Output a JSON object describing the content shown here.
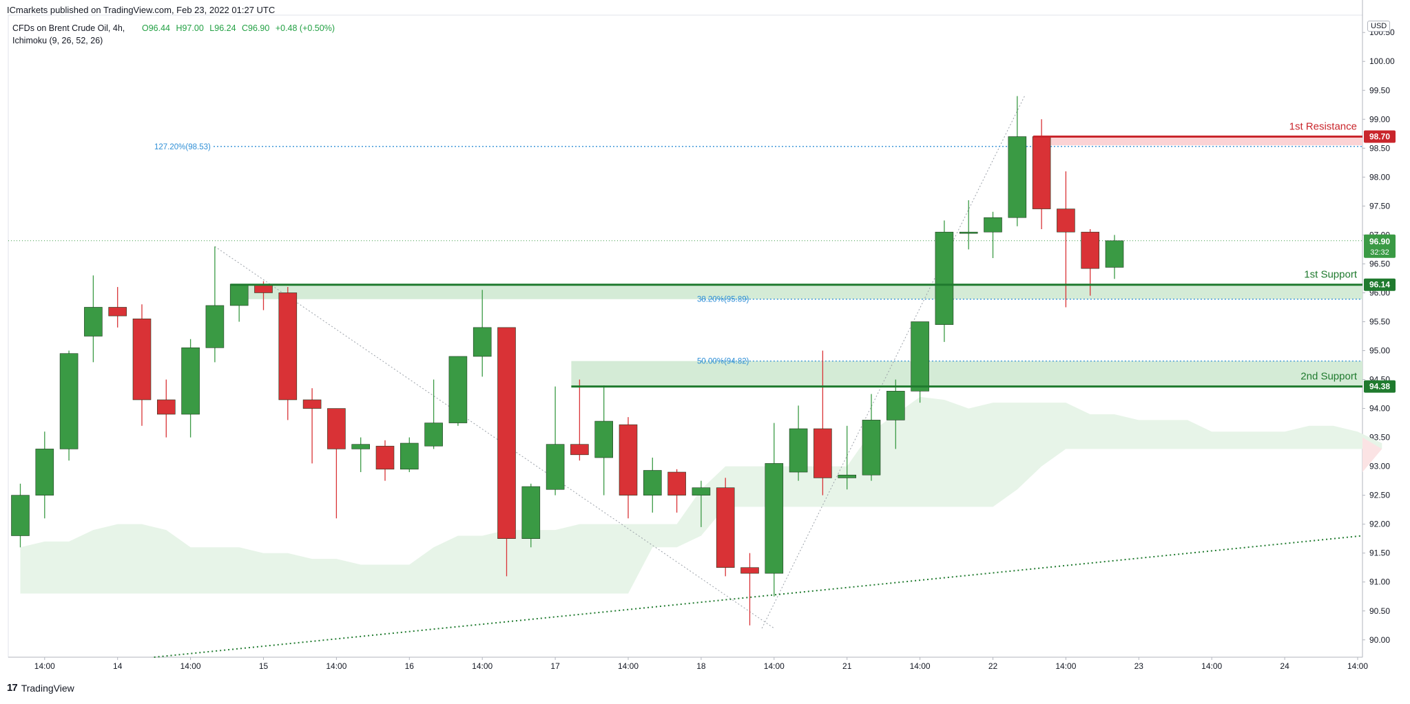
{
  "header": {
    "publisher": "ICmarkets published on TradingView.com, Feb 23, 2022 01:27 UTC",
    "symbol": "CFDs on Brent Crude Oil, 4h,",
    "indicator": "Ichimoku (9, 26, 52, 26)",
    "ohlc": {
      "open": "O96.44",
      "high": "H97.00",
      "low": "L96.24",
      "close": "C96.90",
      "change": "+0.48 (+0.50%)"
    }
  },
  "currency": "USD",
  "footer": {
    "logo_text": "TradingView"
  },
  "colors": {
    "up": "#3a9a44",
    "down": "#d93236",
    "support": "#1f7a2e",
    "resistance": "#c9252b",
    "fib": "#2f8fd6",
    "cloud": "#e7f4e8"
  },
  "chart_data": {
    "type": "candlestick",
    "timeframe": "4h",
    "ylim": [
      89.7,
      100.8
    ],
    "y_ticks": [
      "90.00",
      "90.50",
      "91.00",
      "91.50",
      "92.00",
      "92.50",
      "93.00",
      "93.50",
      "94.00",
      "94.50",
      "95.00",
      "95.50",
      "96.00",
      "96.50",
      "97.00",
      "97.50",
      "98.00",
      "98.50",
      "99.00",
      "99.50",
      "100.00",
      "100.50"
    ],
    "x_ticks": [
      {
        "i": 1,
        "label": "14:00"
      },
      {
        "i": 4,
        "label": "14"
      },
      {
        "i": 7,
        "label": "14:00"
      },
      {
        "i": 10,
        "label": "15"
      },
      {
        "i": 13,
        "label": "14:00"
      },
      {
        "i": 16,
        "label": "16"
      },
      {
        "i": 19,
        "label": "14:00"
      },
      {
        "i": 22,
        "label": "17"
      },
      {
        "i": 25,
        "label": "14:00"
      },
      {
        "i": 28,
        "label": "18"
      },
      {
        "i": 31,
        "label": "14:00"
      },
      {
        "i": 34,
        "label": "21"
      },
      {
        "i": 37,
        "label": "14:00"
      },
      {
        "i": 40,
        "label": "22"
      },
      {
        "i": 43,
        "label": "14:00"
      },
      {
        "i": 46,
        "label": "23"
      },
      {
        "i": 49,
        "label": "14:00"
      },
      {
        "i": 52,
        "label": "24"
      },
      {
        "i": 55,
        "label": "14:00"
      }
    ],
    "candles": [
      {
        "o": 91.8,
        "h": 92.7,
        "l": 91.6,
        "c": 92.5
      },
      {
        "o": 92.5,
        "h": 93.6,
        "l": 92.1,
        "c": 93.3
      },
      {
        "o": 93.3,
        "h": 95.0,
        "l": 93.1,
        "c": 94.95
      },
      {
        "o": 95.25,
        "h": 96.3,
        "l": 94.8,
        "c": 95.75
      },
      {
        "o": 95.75,
        "h": 96.1,
        "l": 95.4,
        "c": 95.6
      },
      {
        "o": 95.55,
        "h": 95.8,
        "l": 93.7,
        "c": 94.15
      },
      {
        "o": 94.15,
        "h": 94.5,
        "l": 93.5,
        "c": 93.9
      },
      {
        "o": 93.9,
        "h": 95.2,
        "l": 93.5,
        "c": 95.05
      },
      {
        "o": 95.05,
        "h": 96.8,
        "l": 94.8,
        "c": 95.78
      },
      {
        "o": 95.78,
        "h": 96.15,
        "l": 95.5,
        "c": 96.15
      },
      {
        "o": 96.14,
        "h": 96.2,
        "l": 95.7,
        "c": 96.0
      },
      {
        "o": 96.0,
        "h": 96.1,
        "l": 93.8,
        "c": 94.15
      },
      {
        "o": 94.15,
        "h": 94.35,
        "l": 93.05,
        "c": 94.0
      },
      {
        "o": 94.0,
        "h": 94.0,
        "l": 92.1,
        "c": 93.3
      },
      {
        "o": 93.3,
        "h": 93.5,
        "l": 92.9,
        "c": 93.38
      },
      {
        "o": 93.35,
        "h": 93.45,
        "l": 92.75,
        "c": 92.95
      },
      {
        "o": 92.95,
        "h": 93.5,
        "l": 92.9,
        "c": 93.4
      },
      {
        "o": 93.35,
        "h": 94.5,
        "l": 93.3,
        "c": 93.75
      },
      {
        "o": 93.75,
        "h": 94.9,
        "l": 93.7,
        "c": 94.9
      },
      {
        "o": 94.9,
        "h": 96.05,
        "l": 94.55,
        "c": 95.4
      },
      {
        "o": 95.4,
        "h": 95.4,
        "l": 91.1,
        "c": 91.75
      },
      {
        "o": 91.75,
        "h": 92.7,
        "l": 91.6,
        "c": 92.65
      },
      {
        "o": 92.6,
        "h": 94.38,
        "l": 92.5,
        "c": 93.38
      },
      {
        "o": 93.38,
        "h": 94.5,
        "l": 93.1,
        "c": 93.2
      },
      {
        "o": 93.15,
        "h": 94.4,
        "l": 92.5,
        "c": 93.78
      },
      {
        "o": 93.72,
        "h": 93.85,
        "l": 92.1,
        "c": 92.5
      },
      {
        "o": 92.5,
        "h": 93.15,
        "l": 92.2,
        "c": 92.93
      },
      {
        "o": 92.9,
        "h": 92.95,
        "l": 92.2,
        "c": 92.5
      },
      {
        "o": 92.5,
        "h": 92.75,
        "l": 91.95,
        "c": 92.63
      },
      {
        "o": 92.63,
        "h": 92.8,
        "l": 91.1,
        "c": 91.25
      },
      {
        "o": 91.25,
        "h": 91.5,
        "l": 90.25,
        "c": 91.15
      },
      {
        "o": 91.15,
        "h": 93.75,
        "l": 90.75,
        "c": 93.05
      },
      {
        "o": 92.9,
        "h": 94.05,
        "l": 92.75,
        "c": 93.65
      },
      {
        "o": 93.65,
        "h": 95.0,
        "l": 92.5,
        "c": 92.8
      },
      {
        "o": 92.8,
        "h": 93.7,
        "l": 92.6,
        "c": 92.85
      },
      {
        "o": 92.85,
        "h": 94.25,
        "l": 92.75,
        "c": 93.8
      },
      {
        "o": 93.8,
        "h": 94.5,
        "l": 93.3,
        "c": 94.3
      },
      {
        "o": 94.3,
        "h": 95.5,
        "l": 94.1,
        "c": 95.5
      },
      {
        "o": 95.45,
        "h": 97.25,
        "l": 95.15,
        "c": 97.05
      },
      {
        "o": 97.05,
        "h": 97.6,
        "l": 96.75,
        "c": 97.05
      },
      {
        "o": 97.05,
        "h": 97.4,
        "l": 96.6,
        "c": 97.3
      },
      {
        "o": 97.3,
        "h": 99.4,
        "l": 97.15,
        "c": 98.7
      },
      {
        "o": 98.7,
        "h": 99.0,
        "l": 97.1,
        "c": 97.45
      },
      {
        "o": 97.45,
        "h": 98.1,
        "l": 95.75,
        "c": 97.05
      },
      {
        "o": 97.05,
        "h": 97.1,
        "l": 95.95,
        "c": 96.42
      },
      {
        "o": 96.44,
        "h": 97.0,
        "l": 96.24,
        "c": 96.9
      }
    ],
    "cloud": {
      "start_index": 0,
      "upper": [
        91.6,
        91.7,
        91.7,
        91.9,
        92.0,
        92.0,
        91.9,
        91.6,
        91.6,
        91.6,
        91.5,
        91.5,
        91.4,
        91.4,
        91.3,
        91.3,
        91.3,
        91.6,
        91.8,
        91.8,
        91.9,
        91.9,
        91.9,
        92.0,
        92.0,
        92.0,
        92.0,
        92.0,
        92.6,
        93.0,
        93.0,
        93.0,
        93.0,
        93.0,
        93.0,
        93.6,
        93.9,
        94.2,
        94.15,
        94.0,
        94.1,
        94.1,
        94.1,
        94.1,
        93.9,
        93.9,
        93.8,
        93.8,
        93.8,
        93.6,
        93.6,
        93.6,
        93.6,
        93.7,
        93.7,
        93.6,
        93.4
      ],
      "lower": [
        90.8,
        90.8,
        90.8,
        90.8,
        90.8,
        90.8,
        90.8,
        90.8,
        90.8,
        90.8,
        90.8,
        90.8,
        90.8,
        90.8,
        90.8,
        90.8,
        90.8,
        90.8,
        90.8,
        90.8,
        90.8,
        90.8,
        90.8,
        90.8,
        90.8,
        90.8,
        91.6,
        91.6,
        91.8,
        92.3,
        92.3,
        92.3,
        92.3,
        92.3,
        92.3,
        92.3,
        92.3,
        92.3,
        92.3,
        92.3,
        92.3,
        92.6,
        93.0,
        93.3,
        93.3,
        93.3,
        93.3,
        93.3,
        93.3,
        93.3,
        93.3,
        93.3,
        93.3,
        93.3,
        93.3,
        93.3,
        93.3
      ]
    },
    "levels": [
      {
        "label": "1st Resistance",
        "value": 98.7,
        "price_tag": "98.70",
        "zone": [
          98.55,
          98.7
        ],
        "kind": "resistance",
        "start_index": 42
      },
      {
        "label": "1st Support",
        "value": 96.14,
        "price_tag": "96.14",
        "zone": [
          95.89,
          96.14
        ],
        "kind": "support",
        "start_index": 9
      },
      {
        "label": "2nd Support",
        "value": 94.38,
        "price_tag": "94.38",
        "zone": [
          94.38,
          94.82
        ],
        "kind": "support",
        "start_index": 23
      }
    ],
    "fib_levels": [
      {
        "label": "127.20%(98.53)",
        "value": 98.53,
        "start_index": 6
      },
      {
        "label": "38.20%(95.89)",
        "value": 95.89,
        "start_index": 28
      },
      {
        "label": "50.00%(94.82)",
        "value": 94.82,
        "start_index": 28
      }
    ],
    "trendlines": [
      {
        "style": "dotted-gray",
        "from": {
          "i": 8.0,
          "v": 96.8
        },
        "to": {
          "i": 31.0,
          "v": 90.2
        }
      },
      {
        "style": "dotted-gray",
        "from": {
          "i": 30.5,
          "v": 90.2
        },
        "to": {
          "i": 41.3,
          "v": 99.4
        }
      },
      {
        "style": "dotted-green",
        "from": {
          "i": 5.5,
          "v": 89.7
        },
        "to": {
          "i": 55.5,
          "v": 91.8
        }
      }
    ],
    "last_price": {
      "value": 96.9,
      "label": "96.90",
      "countdown": "32:32"
    }
  }
}
